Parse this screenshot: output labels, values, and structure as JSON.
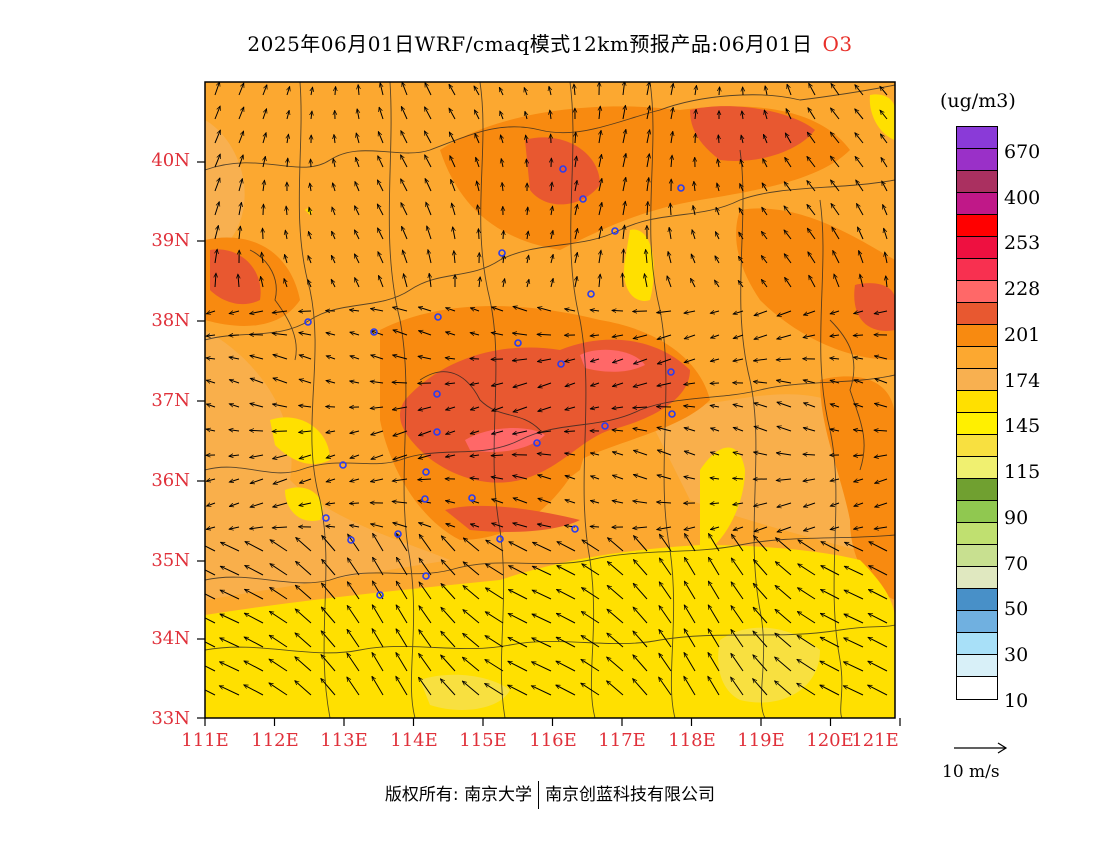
{
  "header": {
    "title": "2025年06月01日WRF/cmaq模式12km预报产品:06月01日",
    "species": "O3"
  },
  "map": {
    "lat_labels": [
      "40N",
      "39N",
      "38N",
      "37N",
      "36N",
      "35N",
      "34N",
      "33N"
    ],
    "lon_labels": [
      "111E",
      "112E",
      "113E",
      "114E",
      "115E",
      "116E",
      "117E",
      "118E",
      "119E",
      "120E",
      "121E"
    ],
    "lat_range": [
      33,
      41
    ],
    "lon_range": [
      111,
      121.5
    ]
  },
  "legend": {
    "unit": "(ug/m3)",
    "colors": [
      "#8a3ad8",
      "#9a30c8",
      "#aa3060",
      "#c01888",
      "#ff0000",
      "#ee1040",
      "#f83050",
      "#ff6868",
      "#e85830",
      "#f88a10",
      "#fca830",
      "#f8b050",
      "#ffe000",
      "#fff000",
      "#f8e040",
      "#f0f070",
      "#70a030",
      "#90c850",
      "#c0e070",
      "#c8e090",
      "#e0e8c0",
      "#4890c8",
      "#70b0e0",
      "#a8e0f8",
      "#d8f0f8",
      "#ffffff"
    ],
    "labels": [
      "670",
      "400",
      "253",
      "228",
      "201",
      "174",
      "145",
      "115",
      "90",
      "70",
      "50",
      "30",
      "10"
    ],
    "reference_vector": "10 m/s"
  },
  "footer": {
    "copyright_prefix": "版权所有:",
    "org1": "南京大学",
    "org2": "南京创蓝科技有限公司"
  }
}
